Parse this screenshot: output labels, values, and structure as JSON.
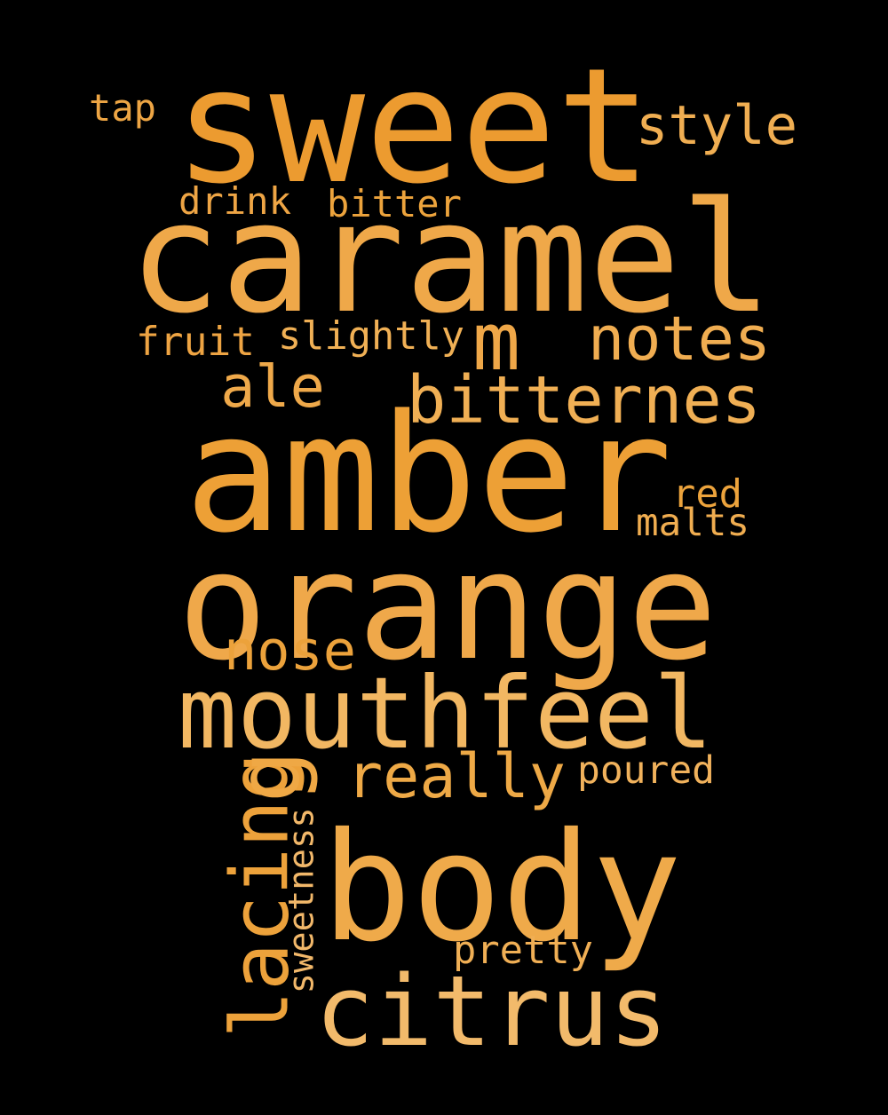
{
  "background": "#000000",
  "words": [
    {
      "text": "sweet",
      "color": "#ec9b30"
    },
    {
      "text": "caramel",
      "color": "#efa849"
    },
    {
      "text": "amber",
      "color": "#eda036"
    },
    {
      "text": "orange",
      "color": "#efa84a"
    },
    {
      "text": "body",
      "color": "#efaa4a"
    },
    {
      "text": "mouthfeel",
      "color": "#f2b762"
    },
    {
      "text": "citrus",
      "color": "#f2ba6b"
    },
    {
      "text": "lacing",
      "color": "#eda23b"
    },
    {
      "text": "m",
      "color": "#efa748"
    },
    {
      "text": "bitternes",
      "color": "#f0af54"
    },
    {
      "text": "notes",
      "color": "#f0ad51"
    },
    {
      "text": "really",
      "color": "#eea946"
    },
    {
      "text": "ale",
      "color": "#efa94a"
    },
    {
      "text": "nose",
      "color": "#eca23b"
    },
    {
      "text": "style",
      "color": "#f0ae52"
    },
    {
      "text": "g",
      "color": "#efa845"
    },
    {
      "text": "sweetness",
      "color": "#f2b86a"
    },
    {
      "text": "drink",
      "color": "#eea545"
    },
    {
      "text": "bitter",
      "color": "#eca33c"
    },
    {
      "text": "tap",
      "color": "#eda544"
    },
    {
      "text": "fruit",
      "color": "#eea443"
    },
    {
      "text": "slightly",
      "color": "#f0b055"
    },
    {
      "text": "red",
      "color": "#eca33c"
    },
    {
      "text": "malts",
      "color": "#f0ad50"
    },
    {
      "text": "poured",
      "color": "#f1b25c"
    },
    {
      "text": "pretty",
      "color": "#f0af55"
    }
  ]
}
